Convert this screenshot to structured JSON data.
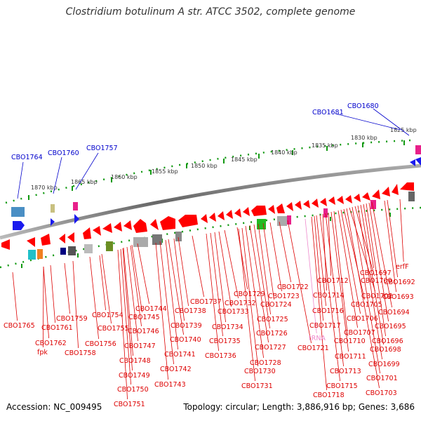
{
  "title": "Clostridium botulinum A str. ATCC 3502, complete genome",
  "footer": {
    "accession": "Accession: NC_009495",
    "topology": "Topology: circular; Length: 3,886,916 bp; Genes: 3,686"
  },
  "colors": {
    "forward_gene": "#1a1aee",
    "reverse_gene": "#ff0000",
    "red_label": "#dd0000",
    "blue_label": "#0000cc",
    "trna_label": "#ee88cc",
    "tick": "#119911",
    "backbone": "#888888"
  },
  "scale_labels": [
    "1870 kbp",
    "1865 kbp",
    "1860 kbp",
    "1855 kbp",
    "1850 kbp",
    "1845 kbp",
    "1840 kbp",
    "1835 kbp",
    "1830 kbp",
    "1825 kbp"
  ],
  "top_labels": [
    "CBO1764",
    "CBO1760",
    "CBO1757",
    "CBO1681",
    "CBO1680"
  ],
  "bottom_labels": [
    "CBO1765",
    "CBO1762",
    "fpk",
    "CBO1761",
    "CBO1759",
    "CBO1758",
    "CBO1756",
    "CBO1755",
    "CBO1754",
    "CBO1751",
    "CBO1750",
    "CBO1749",
    "CBO1748",
    "CBO1747",
    "CBO1746",
    "CBO1745",
    "CBO1744",
    "CBO1743",
    "CBO1742",
    "CBO1741",
    "CBO1740",
    "CBO1739",
    "CBO1738",
    "CBO1737",
    "CBO1736",
    "CBO1735",
    "CBO1734",
    "CBO1733",
    "CBO1732",
    "CBO1731",
    "CBO1730",
    "CBO1729",
    "CBO1728",
    "CBO1727",
    "CBO1726",
    "CBO1725",
    "CBO1724",
    "CBO1723",
    "CBO1722",
    "CBO1721",
    "tRNA",
    "CBO1718",
    "CBO1717",
    "CBO1716",
    "CBO1715",
    "CBO1714",
    "CBO1713",
    "CBO1712",
    "CBO1711",
    "CBO1710",
    "CBO1707",
    "CBO1706",
    "CBO1705",
    "CBO1703",
    "CBO1702",
    "CBO1701",
    "CBO1700",
    "CBO1699",
    "CBO1698",
    "CBO1697",
    "CBO1696",
    "CBO1695",
    "CBO1694",
    "CBO1693",
    "CBO1692",
    "erfF"
  ]
}
